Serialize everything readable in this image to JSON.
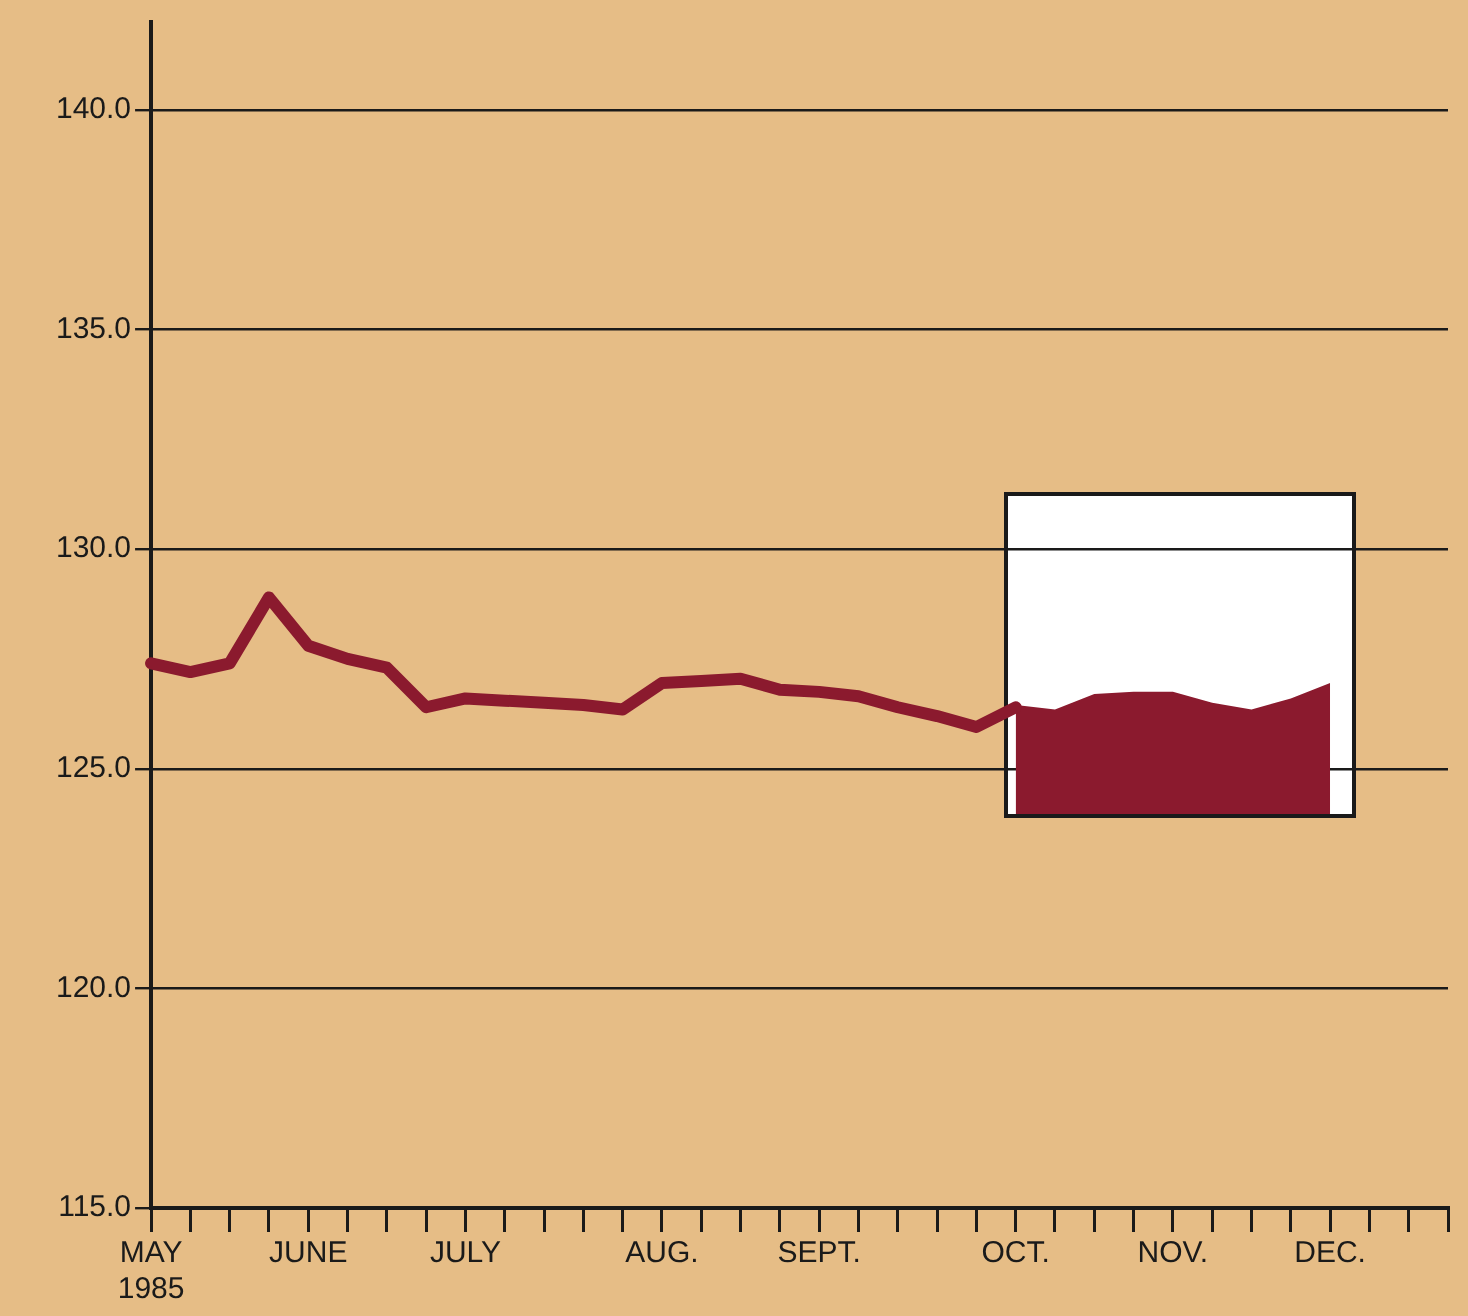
{
  "chart_data": {
    "type": "line",
    "categories": [
      "MAY\n1985",
      null,
      null,
      null,
      "JUNE",
      null,
      null,
      null,
      "JULY",
      null,
      null,
      null,
      null,
      "AUG.",
      null,
      null,
      null,
      "SEPT.",
      null,
      null,
      null,
      null,
      "OCT.",
      null,
      null,
      null,
      "NOV.",
      null,
      null,
      null,
      "DEC.",
      null,
      null,
      null
    ],
    "series": [
      {
        "type": "line",
        "color": "#8b1a2e",
        "values": [
          127.4,
          127.2,
          127.4,
          128.9,
          127.8,
          127.5,
          127.3,
          126.4,
          126.6,
          126.55,
          126.5,
          126.45,
          126.35,
          126.95,
          127.0,
          127.05,
          126.8,
          126.75,
          126.65,
          126.4,
          126.2,
          125.95,
          126.4,
          null,
          null,
          null,
          null,
          null,
          null,
          null,
          null,
          null,
          null,
          null
        ]
      },
      {
        "type": "area",
        "color": "#8b1a2e",
        "values": [
          null,
          null,
          null,
          null,
          null,
          null,
          null,
          null,
          null,
          null,
          null,
          null,
          null,
          null,
          null,
          null,
          null,
          null,
          null,
          null,
          null,
          null,
          126.45,
          126.35,
          126.7,
          126.75,
          126.75,
          126.5,
          126.35,
          126.6,
          126.95,
          null,
          null,
          null
        ]
      }
    ],
    "ylim": [
      115,
      142
    ],
    "yticks": [
      {
        "value": 115,
        "label": "115.0"
      },
      {
        "value": 120,
        "label": "120.0"
      },
      {
        "value": 125,
        "label": "125.0"
      },
      {
        "value": 130,
        "label": "130.0"
      },
      {
        "value": 135,
        "label": "135.0"
      },
      {
        "value": 140,
        "label": "140.0"
      }
    ],
    "grid": "y",
    "legend": false,
    "marker": "none",
    "line_style": "solid"
  }
}
